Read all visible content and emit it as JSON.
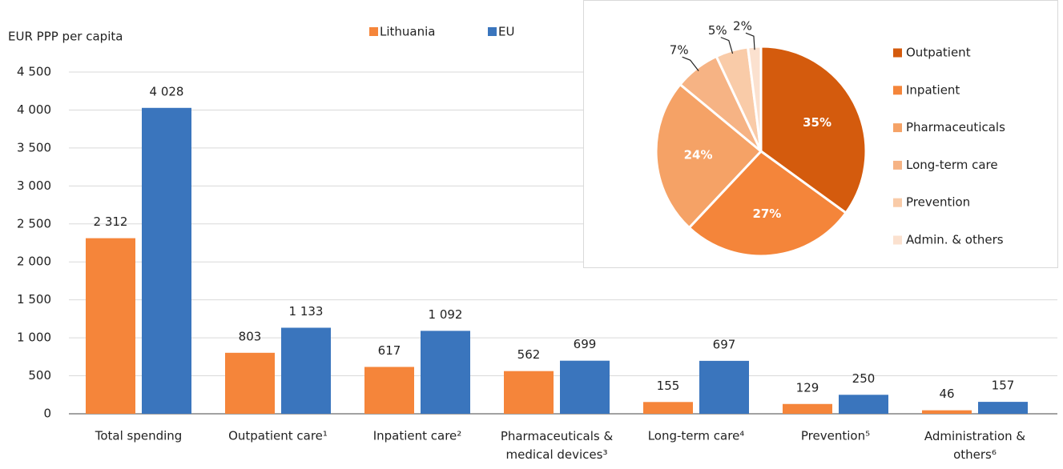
{
  "chart_data": [
    {
      "type": "bar",
      "y_label": "EUR PPP per capita",
      "categories": [
        "Total spending",
        "Outpatient care¹",
        "Inpatient care²",
        "Pharmaceuticals & medical devices³",
        "Long-term care⁴",
        "Prevention⁵",
        "Administration & others⁶"
      ],
      "series": [
        {
          "name": "Lithuania",
          "color": "#f5853a",
          "values": [
            2312,
            803,
            617,
            562,
            155,
            129,
            46
          ],
          "value_labels": [
            "2 312",
            "803",
            "617",
            "562",
            "155",
            "129",
            "46"
          ]
        },
        {
          "name": "EU",
          "color": "#3a75bd",
          "values": [
            4028,
            1133,
            1092,
            699,
            697,
            250,
            157
          ],
          "value_labels": [
            "4 028",
            "1 133",
            "1 092",
            "699",
            "697",
            "250",
            "157"
          ]
        }
      ],
      "ylim": [
        0,
        4500
      ],
      "yticks": [
        0,
        500,
        {
          "value": 1000,
          "label": "1 000"
        },
        {
          "value": 1500,
          "label": "1 500"
        },
        {
          "value": 2000,
          "label": "2 000"
        },
        {
          "value": 2500,
          "label": "2 500"
        },
        {
          "value": 3000,
          "label": "3 000"
        },
        {
          "value": 3500,
          "label": "3 500"
        },
        {
          "value": 4000,
          "label": "4 000"
        },
        {
          "value": 4500,
          "label": "4 500"
        }
      ],
      "grid": true,
      "legend": "top"
    },
    {
      "type": "pie",
      "categories": [
        "Outpatient",
        "Inpatient",
        "Pharmaceuticals",
        "Long-term care",
        "Prevention",
        "Admin. & others"
      ],
      "values": [
        35,
        27,
        24,
        7,
        5,
        2
      ],
      "value_labels": [
        "35%",
        "27%",
        "24%",
        "7%",
        "5%",
        "2%"
      ],
      "colors": [
        "#d45b0d",
        "#f4853a",
        "#f5a266",
        "#f6b384",
        "#f9cba8",
        "#fbe1cf"
      ],
      "legend": "right"
    }
  ]
}
